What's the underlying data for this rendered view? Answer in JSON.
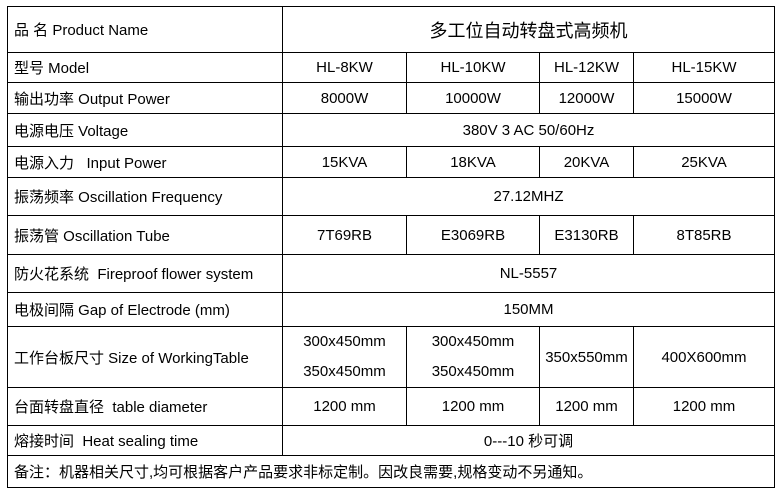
{
  "product_name": {
    "label": "品 名 Product Name",
    "value": "多工位自动转盘式高频机"
  },
  "model": {
    "label": "型号 Model",
    "values": [
      "HL-8KW",
      "HL-10KW",
      "HL-12KW",
      "HL-15KW"
    ]
  },
  "output_power": {
    "label": "输出功率 Output Power",
    "values": [
      "8000W",
      "10000W",
      "12000W",
      "15000W"
    ]
  },
  "voltage": {
    "label": "电源电压 Voltage",
    "value": "380V 3 AC 50/60Hz"
  },
  "input_power": {
    "label": "电源入力   Input Power",
    "values": [
      "15KVA",
      "18KVA",
      "20KVA",
      "25KVA"
    ]
  },
  "oscillation_frequency": {
    "label": "振荡频率 Oscillation Frequency",
    "value": "27.12MHZ"
  },
  "oscillation_tube": {
    "label": "振荡管 Oscillation Tube",
    "values": [
      "7T69RB",
      "E3069RB",
      "E3130RB",
      "8T85RB"
    ]
  },
  "fireproof": {
    "label": "防火花系统  Fireproof flower system",
    "value": "NL-5557"
  },
  "electrode_gap": {
    "label": "电极间隔 Gap of Electrode (mm)",
    "value": "150MM"
  },
  "working_table": {
    "label": "工作台板尺寸 Size of WorkingTable",
    "values": [
      [
        "300x450mm",
        "350x450mm"
      ],
      [
        "300x450mm",
        "350x450mm"
      ],
      [
        "350x550mm"
      ],
      [
        "400X600mm"
      ]
    ]
  },
  "table_diameter": {
    "label": "台面转盘直径  table diameter",
    "values": [
      "1200 mm",
      "1200 mm",
      "1200 mm",
      "1200 mm"
    ]
  },
  "heat_sealing": {
    "label": "熔接时间  Heat sealing time",
    "value": "0---10 秒可调"
  },
  "note": "备注：机器相关尺寸,均可根据客户产品要求非标定制。因改良需要,规格变动不另通知。"
}
